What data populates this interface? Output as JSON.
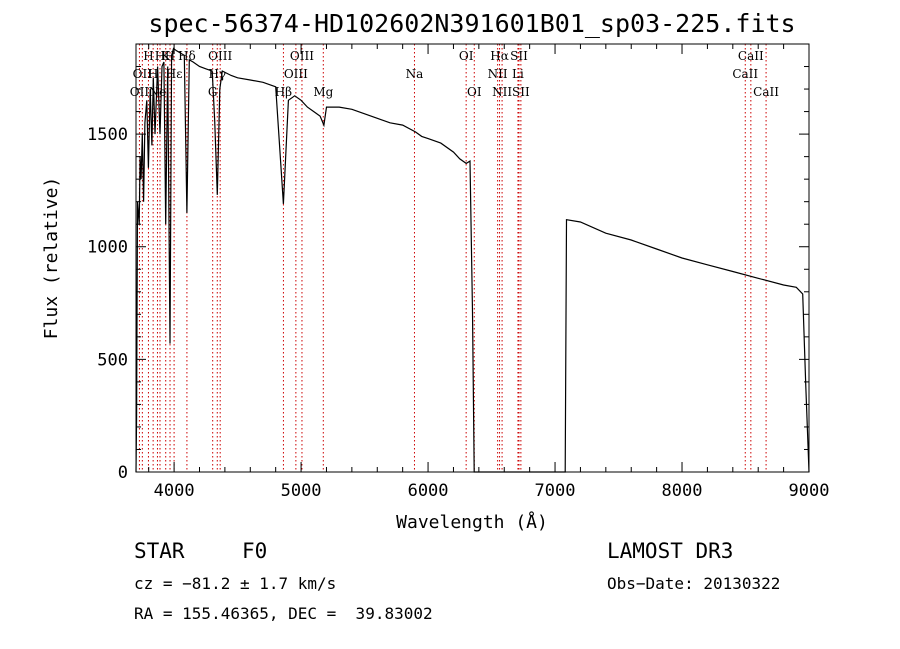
{
  "chart_data": {
    "type": "line",
    "title": "spec-56374-HD102602N391601B01_sp03-225.fits",
    "xlabel": "Wavelength (Å)",
    "ylabel": "Flux (relative)",
    "xlim": [
      3700,
      9000
    ],
    "ylim": [
      0,
      1900
    ],
    "xticks": [
      4000,
      5000,
      6000,
      7000,
      8000,
      9000
    ],
    "yticks": [
      0,
      500,
      1000,
      1500
    ],
    "series": [
      {
        "name": "spectrum",
        "points": [
          [
            3700,
            0
          ],
          [
            3705,
            250
          ],
          [
            3712,
            1200
          ],
          [
            3725,
            1100
          ],
          [
            3732,
            1400
          ],
          [
            3740,
            1300
          ],
          [
            3750,
            1500
          ],
          [
            3760,
            1200
          ],
          [
            3770,
            1550
          ],
          [
            3785,
            1650
          ],
          [
            3798,
            1350
          ],
          [
            3812,
            1700
          ],
          [
            3825,
            1450
          ],
          [
            3836,
            1750
          ],
          [
            3850,
            1500
          ],
          [
            3870,
            1800
          ],
          [
            3889,
            1500
          ],
          [
            3905,
            1800
          ],
          [
            3920,
            1820
          ],
          [
            3934,
            1100
          ],
          [
            3950,
            1800
          ],
          [
            3968,
            570
          ],
          [
            3980,
            1850
          ],
          [
            3995,
            1880
          ],
          [
            4020,
            1870
          ],
          [
            4050,
            1860
          ],
          [
            4080,
            1850
          ],
          [
            4101,
            1150
          ],
          [
            4120,
            1830
          ],
          [
            4150,
            1820
          ],
          [
            4200,
            1800
          ],
          [
            4250,
            1790
          ],
          [
            4300,
            1780
          ],
          [
            4320,
            1560
          ],
          [
            4340,
            1230
          ],
          [
            4360,
            1700
          ],
          [
            4380,
            1780
          ],
          [
            4450,
            1760
          ],
          [
            4500,
            1750
          ],
          [
            4600,
            1740
          ],
          [
            4700,
            1730
          ],
          [
            4800,
            1710
          ],
          [
            4861,
            1190
          ],
          [
            4900,
            1650
          ],
          [
            4950,
            1670
          ],
          [
            5000,
            1650
          ],
          [
            5050,
            1620
          ],
          [
            5100,
            1600
          ],
          [
            5150,
            1580
          ],
          [
            5180,
            1540
          ],
          [
            5200,
            1620
          ],
          [
            5300,
            1620
          ],
          [
            5400,
            1610
          ],
          [
            5500,
            1590
          ],
          [
            5600,
            1570
          ],
          [
            5700,
            1550
          ],
          [
            5800,
            1540
          ],
          [
            5900,
            1510
          ],
          [
            5950,
            1490
          ],
          [
            6000,
            1480
          ],
          [
            6100,
            1460
          ],
          [
            6200,
            1420
          ],
          [
            6250,
            1390
          ],
          [
            6300,
            1370
          ],
          [
            6330,
            1380
          ],
          [
            6350,
            710
          ],
          [
            6363,
            0
          ],
          [
            7080,
            0
          ],
          [
            7090,
            1120
          ],
          [
            7200,
            1110
          ],
          [
            7400,
            1060
          ],
          [
            7600,
            1030
          ],
          [
            7800,
            990
          ],
          [
            8000,
            950
          ],
          [
            8200,
            920
          ],
          [
            8400,
            890
          ],
          [
            8600,
            860
          ],
          [
            8800,
            830
          ],
          [
            8900,
            820
          ],
          [
            8950,
            790
          ],
          [
            8975,
            380
          ],
          [
            9000,
            0
          ]
        ]
      }
    ],
    "line_markers": [
      {
        "wavelength": 3727,
        "label": "OII",
        "row": 3
      },
      {
        "wavelength": 3750,
        "label": "OII",
        "row": 2
      },
      {
        "wavelength": 3798,
        "label": "H",
        "row": 1
      },
      {
        "wavelength": 3835,
        "label": "H",
        "row": 2
      },
      {
        "wavelength": 3869,
        "label": "Ne",
        "row": 3
      },
      {
        "wavelength": 3889,
        "label": "H",
        "row": 1
      },
      {
        "wavelength": 3934,
        "label": "K",
        "row": 1
      },
      {
        "wavelength": 3968,
        "label": "H",
        "row": 1
      },
      {
        "wavelength": 4000,
        "label": "Hε",
        "row": 2
      },
      {
        "wavelength": 4101,
        "label": "Hδ",
        "row": 1
      },
      {
        "wavelength": 4304,
        "label": "G",
        "row": 3
      },
      {
        "wavelength": 4340,
        "label": "Hγ",
        "row": 2
      },
      {
        "wavelength": 4363,
        "label": "OIII",
        "row": 1
      },
      {
        "wavelength": 4861,
        "label": "Hβ",
        "row": 3
      },
      {
        "wavelength": 4959,
        "label": "OIII",
        "row": 2
      },
      {
        "wavelength": 5007,
        "label": "OIII",
        "row": 1
      },
      {
        "wavelength": 5175,
        "label": "Mg",
        "row": 3
      },
      {
        "wavelength": 5893,
        "label": "Na",
        "row": 2
      },
      {
        "wavelength": 6300,
        "label": "OI",
        "row": 1
      },
      {
        "wavelength": 6364,
        "label": "OI",
        "row": 3
      },
      {
        "wavelength": 6548,
        "label": "NII",
        "row": 2
      },
      {
        "wavelength": 6563,
        "label": "Hα",
        "row": 1
      },
      {
        "wavelength": 6583,
        "label": "NII",
        "row": 3
      },
      {
        "wavelength": 6708,
        "label": "Li",
        "row": 2
      },
      {
        "wavelength": 6716,
        "label": "SII",
        "row": 1
      },
      {
        "wavelength": 6731,
        "label": "SII",
        "row": 3
      },
      {
        "wavelength": 8498,
        "label": "CaII",
        "row": 2
      },
      {
        "wavelength": 8542,
        "label": "CaII",
        "row": 1
      },
      {
        "wavelength": 8662,
        "label": "CaII",
        "row": 3
      }
    ]
  },
  "info": {
    "class": "STAR",
    "subclass": "F0",
    "survey": "LAMOST DR3",
    "cz": "cz = −81.2 ± 1.7 km/s",
    "obs_date": "Obs−Date: 20130322",
    "coords": "RA = 155.46365, DEC =  39.83002"
  },
  "colors": {
    "spectrum": "#000000",
    "marker": "#cc0000"
  }
}
